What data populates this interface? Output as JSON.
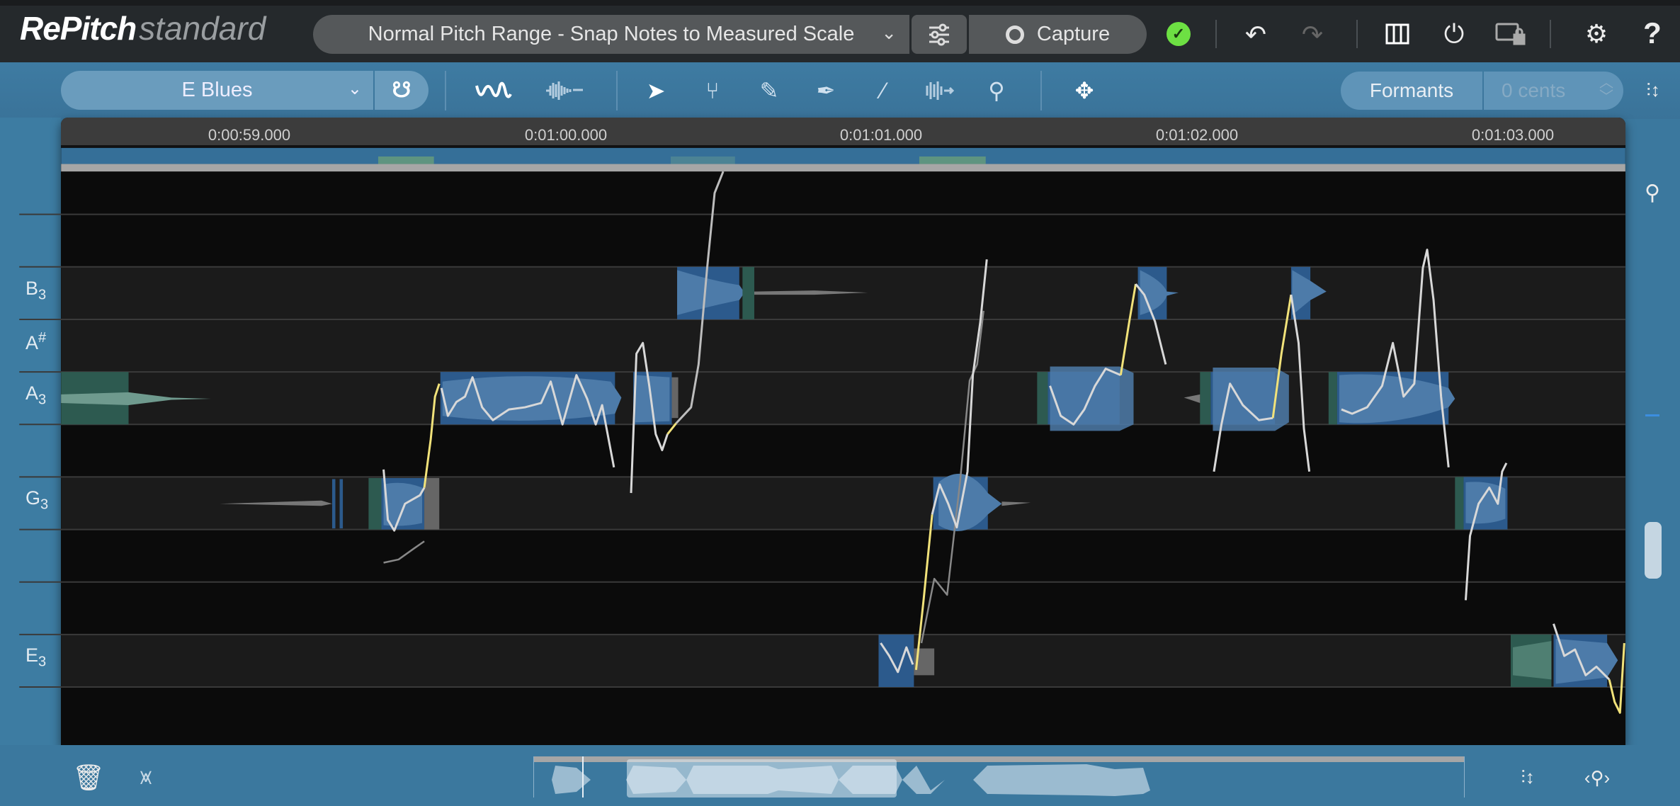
{
  "app": {
    "brand": "RePitch",
    "edition": "standard"
  },
  "header": {
    "preset": "Normal Pitch Range - Snap Notes to Measured Scale",
    "capture_label": "Capture",
    "status": "ok"
  },
  "toolbar": {
    "scale": "E Blues",
    "formants_label": "Formants",
    "cents_value": "0 cents"
  },
  "timeline": {
    "ticks": [
      "0:00:59.000",
      "0:01:00.000",
      "0:01:01.000",
      "0:01:02.000",
      "0:01:03.000"
    ]
  },
  "pitch_labels": [
    {
      "note": "B",
      "mod": "3",
      "type": "sub"
    },
    {
      "note": "A",
      "mod": "#",
      "type": "sup"
    },
    {
      "note": "A",
      "mod": "3",
      "type": "sub"
    },
    {
      "note": "G",
      "mod": "3",
      "type": "sub"
    },
    {
      "note": "E",
      "mod": "3",
      "type": "sub"
    }
  ],
  "colors": {
    "note_blue": "#2c5a8c",
    "note_green": "#2d5a50",
    "pitch_curve": "#d8d8d8",
    "correction_curve": "#f1e27a",
    "accent": "#3b789e",
    "status_ok": "#6de043"
  },
  "icons": [
    "mixer-icon",
    "capture-icon",
    "check-icon",
    "undo-icon",
    "redo-icon",
    "piano-icon",
    "power-icon",
    "screen-lock-icon",
    "gear-icon",
    "help-icon",
    "magnet-icon",
    "pitch-curve-icon",
    "waveform-icon",
    "pointer-icon",
    "tuning-fork-icon",
    "pencil-icon",
    "pen-icon",
    "line-tool-icon",
    "time-stretch-icon",
    "zoom-icon",
    "move-icon",
    "trash-icon",
    "split-icon"
  ]
}
